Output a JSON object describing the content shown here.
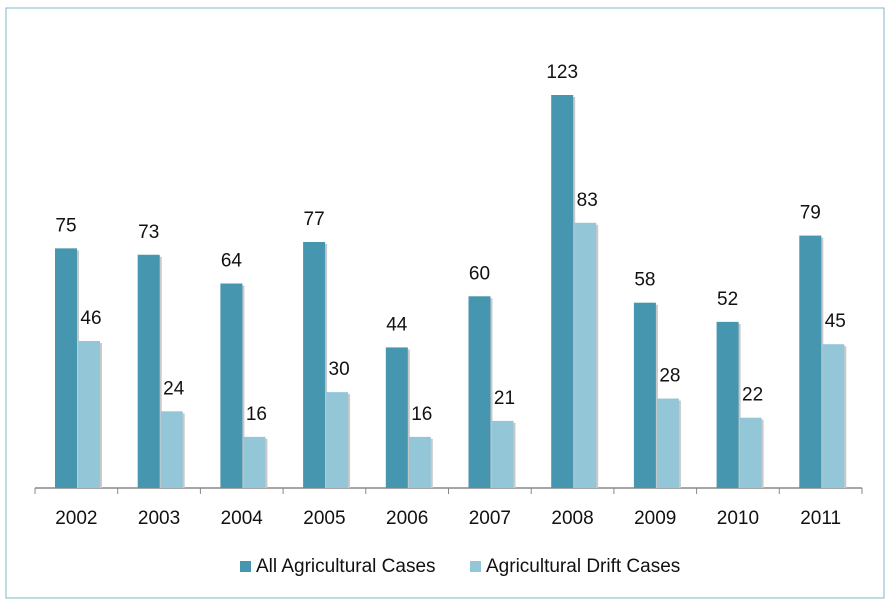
{
  "chart_data": {
    "type": "bar",
    "categories": [
      "2002",
      "2003",
      "2004",
      "2005",
      "2006",
      "2007",
      "2008",
      "2009",
      "2010",
      "2011"
    ],
    "series": [
      {
        "name": "All Agricultural Cases",
        "color": "#4596ae",
        "values": [
          75,
          73,
          64,
          77,
          44,
          60,
          123,
          58,
          52,
          79
        ]
      },
      {
        "name": "Agricultural Drift Cases",
        "color": "#93c6d7",
        "values": [
          46,
          24,
          16,
          30,
          16,
          21,
          83,
          28,
          22,
          45
        ]
      }
    ],
    "legend": "bottom"
  }
}
